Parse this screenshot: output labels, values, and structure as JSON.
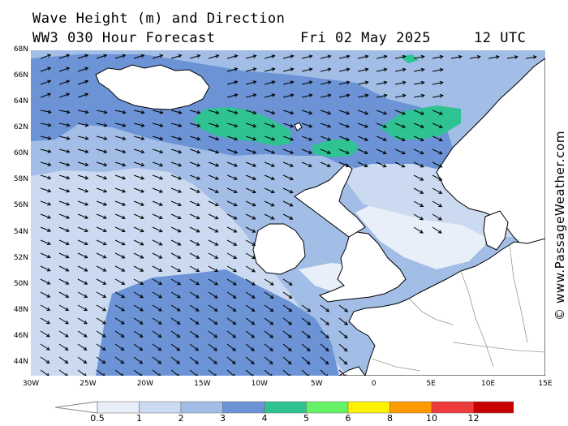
{
  "header": {
    "title": "Wave Height (m) and Direction",
    "subtitle": "WW3 030 Hour Forecast",
    "date": "Fri 02 May 2025",
    "time": "12 UTC"
  },
  "credit": "© www.PassageWeather.com",
  "map": {
    "lon_range": [
      -30,
      15
    ],
    "lat_range": [
      43,
      68
    ],
    "ocean_base_color": "#a2bde6",
    "land_color": "#ffffff",
    "coast_color": "#000000",
    "border_color": "#999999",
    "arrow_color": "#000000",
    "dominant_wave_direction": "west to east, turning south-east toward Biscay",
    "lat_ticks": [
      {
        "value": 68,
        "label": "68N"
      },
      {
        "value": 66,
        "label": "66N"
      },
      {
        "value": 64,
        "label": "64N"
      },
      {
        "value": 62,
        "label": "62N"
      },
      {
        "value": 60,
        "label": "60N"
      },
      {
        "value": 58,
        "label": "58N"
      },
      {
        "value": 56,
        "label": "56N"
      },
      {
        "value": 54,
        "label": "54N"
      },
      {
        "value": 52,
        "label": "52N"
      },
      {
        "value": 50,
        "label": "50N"
      },
      {
        "value": 48,
        "label": "48N"
      },
      {
        "value": 46,
        "label": "46N"
      },
      {
        "value": 44,
        "label": "44N"
      }
    ],
    "lon_ticks": [
      {
        "value": -30,
        "label": "30W"
      },
      {
        "value": -25,
        "label": "25W"
      },
      {
        "value": -20,
        "label": "20W"
      },
      {
        "value": -15,
        "label": "15W"
      },
      {
        "value": -10,
        "label": "10W"
      },
      {
        "value": -5,
        "label": "5W"
      },
      {
        "value": 0,
        "label": "0"
      },
      {
        "value": 5,
        "label": "5E"
      },
      {
        "value": 10,
        "label": "10E"
      },
      {
        "value": 15,
        "label": "15E"
      }
    ]
  },
  "colorbar": {
    "colors": [
      "#e9eff8",
      "#cbdaf0",
      "#a2bde6",
      "#6b93d6",
      "#2fc394",
      "#66f266",
      "#fff200",
      "#ff9a00",
      "#ee3b3b",
      "#c80000",
      "#c000c0"
    ],
    "labels": [
      "0.5",
      "1",
      "2",
      "3",
      "4",
      "5",
      "6",
      "8",
      "10",
      "12"
    ]
  }
}
